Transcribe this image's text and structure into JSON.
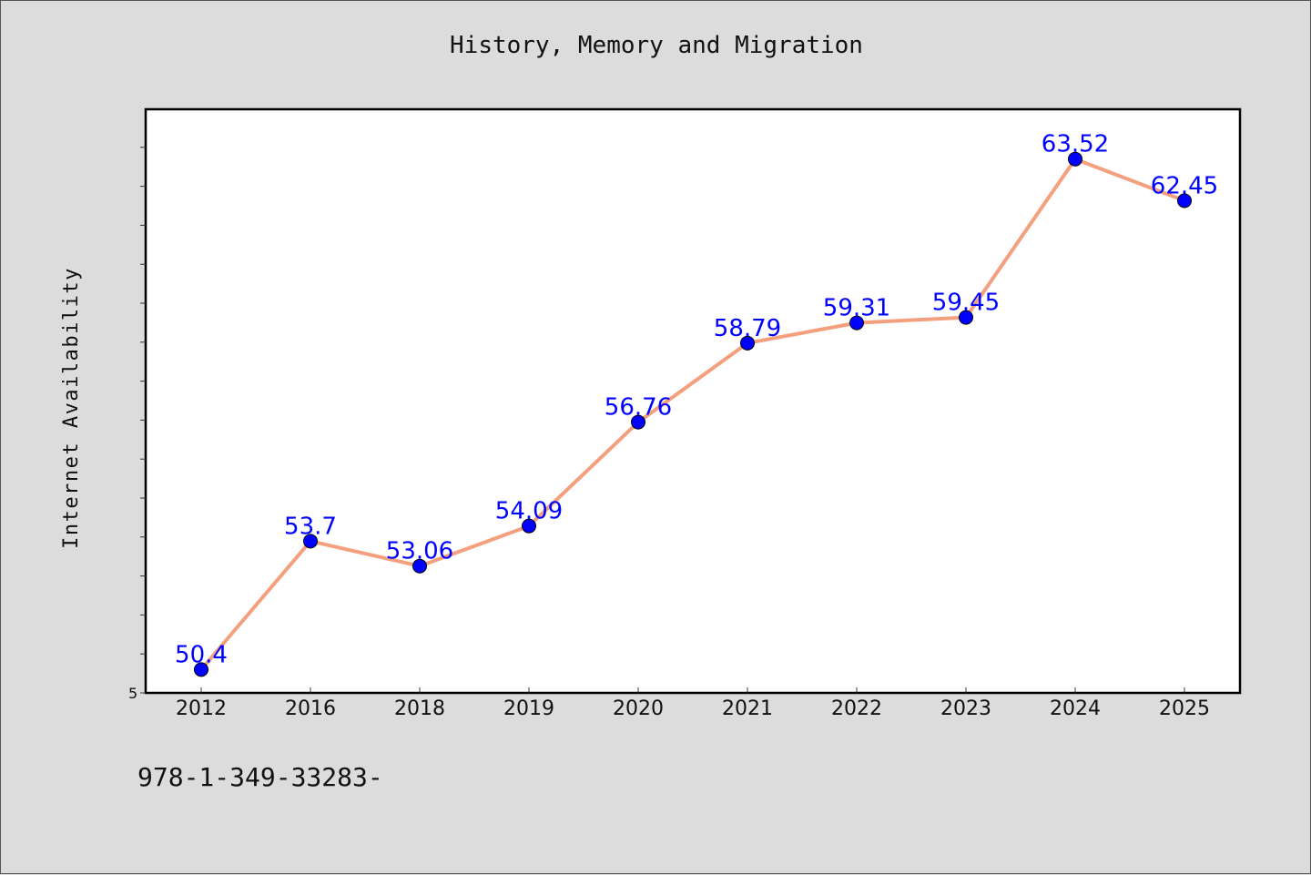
{
  "chart_data": {
    "type": "line",
    "title": "History, Memory and Migration",
    "xlabel": "",
    "ylabel": "Internet Availability",
    "categories": [
      "2012",
      "2016",
      "2018",
      "2019",
      "2020",
      "2021",
      "2022",
      "2023",
      "2024",
      "2025"
    ],
    "series": [
      {
        "values": [
          50.4,
          53.7,
          53.06,
          54.09,
          56.76,
          58.79,
          59.31,
          59.45,
          63.52,
          62.45
        ],
        "labels": [
          "50.4",
          "53.7",
          "53.06",
          "54.09",
          "56.76",
          "58.79",
          "59.31",
          "59.45",
          "63.52",
          "62.45"
        ]
      }
    ],
    "ylim": [
      49.8,
      64.8
    ],
    "y_tick_label": "5",
    "grid": false,
    "legend": "none",
    "colors": {
      "line": "#f4a07e",
      "marker": "#0000ff",
      "label": "#0000ff",
      "plot_bg": "#ffffff",
      "page_bg": "#dcdcdc"
    }
  },
  "footer": {
    "isbn": "978-1-349-33283-"
  }
}
